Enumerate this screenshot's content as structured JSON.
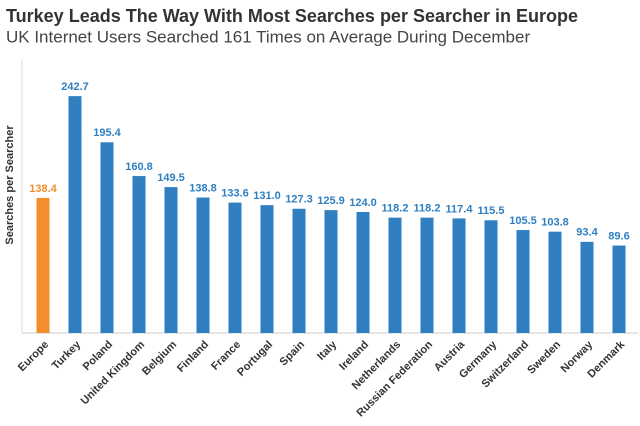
{
  "chart_data": {
    "type": "bar",
    "title": "Turkey Leads The Way With Most Searches per Searcher in Europe",
    "subtitle": "UK Internet Users Searched 161 Times on Average During December",
    "y_label": "Searches per Searcher",
    "categories": [
      "Europe",
      "Turkey",
      "Poland",
      "United Kingdom",
      "Belgium",
      "Finland",
      "France",
      "Portugal",
      "Spain",
      "Italy",
      "Ireland",
      "Netherlands",
      "Russian Federation",
      "Austria",
      "Germany",
      "Switzerland",
      "Sweden",
      "Norway",
      "Denmark"
    ],
    "values": [
      138.4,
      242.7,
      195.4,
      160.8,
      149.5,
      138.8,
      133.6,
      131.0,
      127.3,
      125.9,
      124.0,
      118.2,
      118.2,
      117.4,
      115.5,
      105.5,
      103.8,
      93.4,
      89.6
    ],
    "value_labels": [
      "138.4",
      "242.7",
      "195.4",
      "160.8",
      "149.5",
      "138.8",
      "133.6",
      "131.0",
      "127.3",
      "125.9",
      "124.0",
      "118.2",
      "118.2",
      "117.4",
      "115.5",
      "105.5",
      "103.8",
      "93.4",
      "89.6"
    ],
    "colors": [
      "#f28e2b",
      "#2f7fc1",
      "#2f7fc1",
      "#2f7fc1",
      "#2f7fc1",
      "#2f7fc1",
      "#2f7fc1",
      "#2f7fc1",
      "#2f7fc1",
      "#2f7fc1",
      "#2f7fc1",
      "#2f7fc1",
      "#2f7fc1",
      "#2f7fc1",
      "#2f7fc1",
      "#2f7fc1",
      "#2f7fc1",
      "#2f7fc1",
      "#2f7fc1"
    ],
    "ylim": [
      0,
      250
    ]
  }
}
